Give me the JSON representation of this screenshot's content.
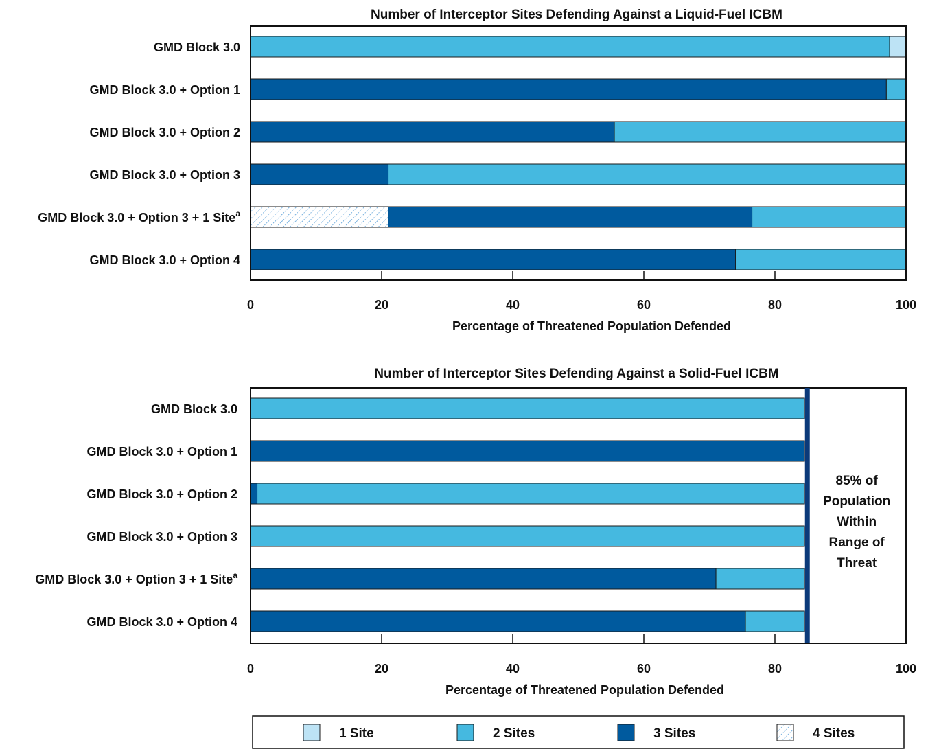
{
  "colors": {
    "one_site": "#bde3f5",
    "two_sites": "#45b9e0",
    "three_sites": "#005a9e",
    "four_sites": "#ffffff",
    "four_sites_hatch": "#5aa0d8",
    "threshold_line": "#0b3a7a"
  },
  "legend": [
    {
      "key": "one_site",
      "label": "1 Site"
    },
    {
      "key": "two_sites",
      "label": "2 Sites"
    },
    {
      "key": "three_sites",
      "label": "3 Sites"
    },
    {
      "key": "four_sites",
      "label": "4 Sites"
    }
  ],
  "chart_data": [
    {
      "type": "bar",
      "orientation": "horizontal",
      "stacked": true,
      "title": "Number of Interceptor Sites Defending Against a Liquid-Fuel ICBM",
      "xlabel": "Percentage of Threatened Population Defended",
      "xlim": [
        0,
        100
      ],
      "xticks": [
        "0",
        "20",
        "40",
        "60",
        "80",
        "100"
      ],
      "categories": [
        {
          "label": "GMD Block 3.0",
          "sup": ""
        },
        {
          "label": "GMD Block 3.0 + Option 1",
          "sup": ""
        },
        {
          "label": "GMD Block 3.0 + Option 2",
          "sup": ""
        },
        {
          "label": "GMD Block 3.0 + Option 3",
          "sup": ""
        },
        {
          "label": "GMD Block 3.0 + Option 3 + 1 Site",
          "sup": "a"
        },
        {
          "label": "GMD Block 3.0 + Option 4",
          "sup": ""
        }
      ],
      "series": [
        {
          "name": "4 Sites",
          "key": "four_sites",
          "values": [
            0,
            0,
            0,
            0,
            21,
            0
          ]
        },
        {
          "name": "3 Sites",
          "key": "three_sites",
          "values": [
            0,
            97,
            55.5,
            21,
            55.5,
            74
          ]
        },
        {
          "name": "2 Sites",
          "key": "two_sites",
          "values": [
            97.5,
            3,
            44.5,
            79,
            23.5,
            26
          ]
        },
        {
          "name": "1 Site",
          "key": "one_site",
          "values": [
            2.5,
            0,
            0,
            0,
            0,
            0
          ]
        }
      ]
    },
    {
      "type": "bar",
      "orientation": "horizontal",
      "stacked": true,
      "title": "Number of Interceptor Sites Defending Against a Solid-Fuel ICBM",
      "xlabel": "Percentage of Threatened Population Defended",
      "xlim": [
        0,
        100
      ],
      "xticks": [
        "0",
        "20",
        "40",
        "60",
        "80",
        "100"
      ],
      "categories": [
        {
          "label": "GMD Block 3.0",
          "sup": ""
        },
        {
          "label": "GMD Block 3.0 + Option 1",
          "sup": ""
        },
        {
          "label": "GMD Block 3.0 + Option 2",
          "sup": ""
        },
        {
          "label": "GMD Block 3.0 + Option 3",
          "sup": ""
        },
        {
          "label": "GMD Block 3.0 + Option 3 + 1 Site",
          "sup": "a"
        },
        {
          "label": "GMD Block 3.0 + Option 4",
          "sup": ""
        }
      ],
      "series": [
        {
          "name": "3 Sites",
          "key": "three_sites",
          "values": [
            0,
            84.5,
            1,
            0,
            71,
            75.5
          ]
        },
        {
          "name": "2 Sites",
          "key": "two_sites",
          "values": [
            84.5,
            0,
            83.5,
            84.5,
            13.5,
            9
          ]
        }
      ],
      "threshold": {
        "value": 85,
        "annotation": [
          "85% of",
          "Population",
          "Within",
          "Range of",
          "Threat"
        ]
      }
    }
  ]
}
